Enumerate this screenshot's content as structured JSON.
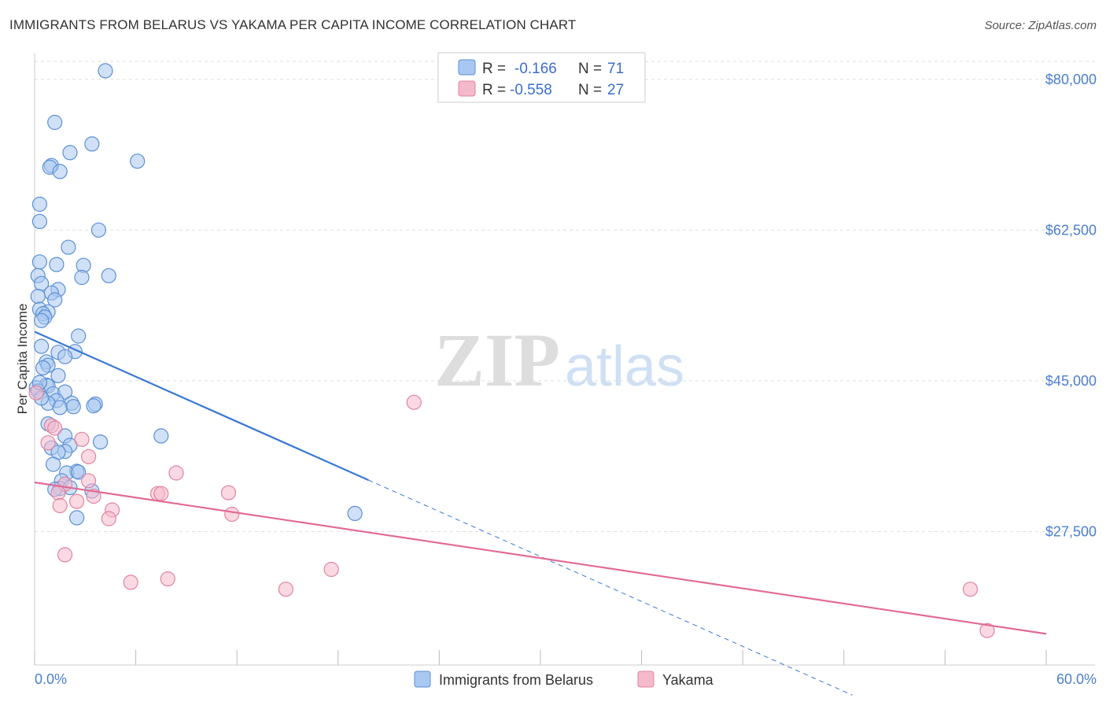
{
  "header": {
    "title": "IMMIGRANTS FROM BELARUS VS YAKAMA PER CAPITA INCOME CORRELATION CHART",
    "source": "Source: ZipAtlas.com"
  },
  "watermark": {
    "zip": "ZIP",
    "atlas": "atlas"
  },
  "legend": {
    "rows": [
      {
        "r_label": "R =",
        "r_value": "-0.166",
        "n_label": "N =",
        "n_value": "71"
      },
      {
        "r_label": "R =",
        "r_value": "-0.558",
        "n_label": "N =",
        "n_value": "27"
      }
    ]
  },
  "colors": {
    "blue_fill": "#a9c8f0",
    "blue_stroke": "#5b8fd6",
    "blue_line": "#3a78d4",
    "pink_fill": "#f5b9cc",
    "pink_stroke": "#e0839f",
    "pink_line": "#e26a94",
    "grid": "#dddddd"
  },
  "chart_data": {
    "type": "scatter",
    "title": "IMMIGRANTS FROM BELARUS VS YAKAMA PER CAPITA INCOME CORRELATION CHART",
    "xlabel": "",
    "ylabel": "Per Capita Income",
    "xlim": [
      0,
      60
    ],
    "ylim": [
      12000,
      83000
    ],
    "x_tick_labels": [
      "0.0%",
      "60.0%"
    ],
    "y_ticks": [
      27500,
      45000,
      62500,
      80000
    ],
    "y_tick_labels": [
      "$27,500",
      "$45,000",
      "$62,500",
      "$80,000"
    ],
    "series": [
      {
        "name": "Immigrants from Belarus",
        "color": "blue",
        "points": [
          [
            4.2,
            81000
          ],
          [
            1.2,
            75000
          ],
          [
            3.4,
            72500
          ],
          [
            2.1,
            71500
          ],
          [
            6.1,
            70500
          ],
          [
            1.0,
            70000
          ],
          [
            0.9,
            69800
          ],
          [
            1.5,
            69300
          ],
          [
            0.3,
            65500
          ],
          [
            0.3,
            63500
          ],
          [
            3.8,
            62500
          ],
          [
            2.0,
            60500
          ],
          [
            0.3,
            58800
          ],
          [
            1.3,
            58500
          ],
          [
            2.9,
            58400
          ],
          [
            4.4,
            57200
          ],
          [
            0.2,
            57200
          ],
          [
            2.8,
            57000
          ],
          [
            0.4,
            56300
          ],
          [
            1.4,
            55600
          ],
          [
            1.0,
            55200
          ],
          [
            1.2,
            54400
          ],
          [
            0.2,
            54800
          ],
          [
            0.3,
            53300
          ],
          [
            0.8,
            53000
          ],
          [
            0.5,
            52800
          ],
          [
            0.6,
            52400
          ],
          [
            0.4,
            52000
          ],
          [
            2.6,
            50200
          ],
          [
            0.4,
            49000
          ],
          [
            2.4,
            48400
          ],
          [
            1.4,
            48300
          ],
          [
            1.8,
            47800
          ],
          [
            0.7,
            47200
          ],
          [
            0.8,
            46800
          ],
          [
            0.5,
            46500
          ],
          [
            1.4,
            45600
          ],
          [
            0.7,
            44500
          ],
          [
            0.8,
            44400
          ],
          [
            1.1,
            43500
          ],
          [
            1.8,
            43700
          ],
          [
            2.2,
            42400
          ],
          [
            1.3,
            42700
          ],
          [
            0.8,
            42400
          ],
          [
            3.6,
            42300
          ],
          [
            3.5,
            42100
          ],
          [
            2.3,
            42000
          ],
          [
            1.5,
            41900
          ],
          [
            0.8,
            40000
          ],
          [
            1.8,
            38600
          ],
          [
            7.5,
            38600
          ],
          [
            3.9,
            37900
          ],
          [
            2.1,
            37500
          ],
          [
            1.0,
            37200
          ],
          [
            1.8,
            36800
          ],
          [
            1.4,
            36700
          ],
          [
            1.1,
            35300
          ],
          [
            2.5,
            34500
          ],
          [
            1.9,
            34300
          ],
          [
            2.6,
            34400
          ],
          [
            1.6,
            33400
          ],
          [
            1.5,
            32500
          ],
          [
            3.4,
            32200
          ],
          [
            1.2,
            32400
          ],
          [
            2.1,
            32600
          ],
          [
            19.0,
            29600
          ],
          [
            2.5,
            29100
          ],
          [
            0.1,
            44200
          ],
          [
            0.2,
            43800
          ],
          [
            0.3,
            44800
          ],
          [
            0.4,
            43000
          ]
        ]
      },
      {
        "name": "Yakama",
        "color": "pink",
        "points": [
          [
            0.1,
            43600
          ],
          [
            22.5,
            42500
          ],
          [
            1.0,
            39800
          ],
          [
            1.2,
            39500
          ],
          [
            0.8,
            37800
          ],
          [
            2.8,
            38200
          ],
          [
            3.2,
            36200
          ],
          [
            8.4,
            34300
          ],
          [
            1.8,
            33000
          ],
          [
            3.2,
            33400
          ],
          [
            1.4,
            32000
          ],
          [
            7.3,
            31900
          ],
          [
            7.5,
            31900
          ],
          [
            11.5,
            32000
          ],
          [
            2.5,
            31000
          ],
          [
            1.5,
            30500
          ],
          [
            4.6,
            30000
          ],
          [
            4.4,
            29000
          ],
          [
            11.7,
            29500
          ],
          [
            1.8,
            24800
          ],
          [
            5.7,
            21600
          ],
          [
            7.9,
            22000
          ],
          [
            14.9,
            20800
          ],
          [
            17.6,
            23100
          ],
          [
            55.5,
            20800
          ],
          [
            56.5,
            16000
          ],
          [
            3.5,
            31600
          ]
        ]
      }
    ],
    "trend_lines": [
      {
        "series": "Immigrants from Belarus",
        "x_start": 0,
        "y_start": 50700,
        "x_solid_end": 19.8,
        "x_dash_end": 48.5,
        "slope": -870
      },
      {
        "series": "Yakama",
        "x_start": 0,
        "y_start": 33200,
        "x_end": 60,
        "slope": -293
      }
    ]
  },
  "bottom_legend": {
    "items": [
      {
        "label": "Immigrants from Belarus"
      },
      {
        "label": "Yakama"
      }
    ]
  }
}
